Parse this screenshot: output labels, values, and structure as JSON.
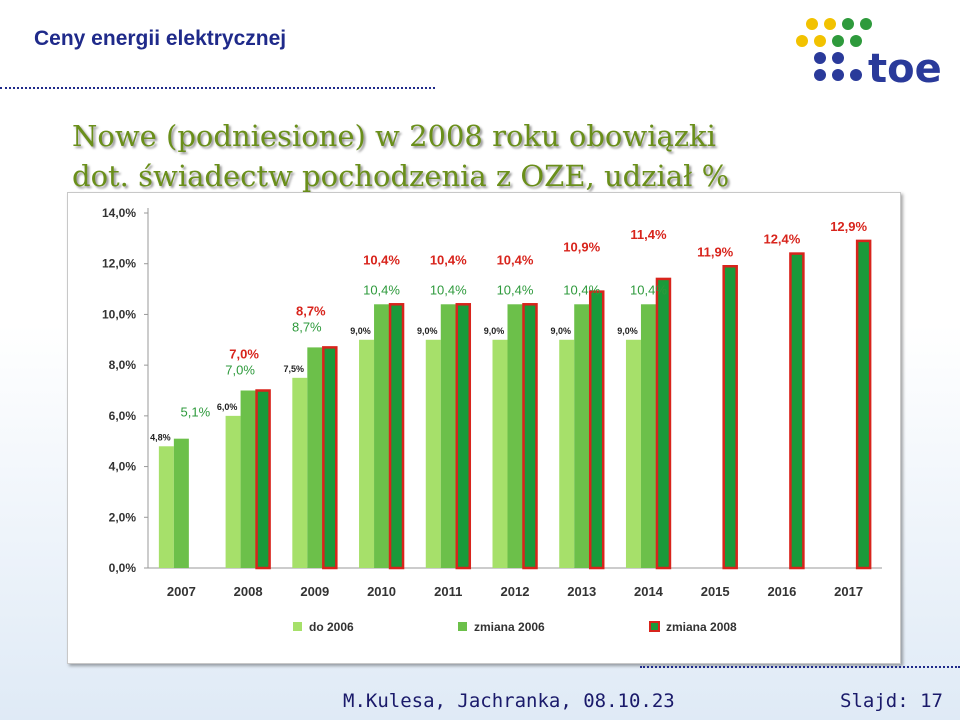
{
  "header": {
    "title": "Ceny energii elektrycznej",
    "logo_text": "toe"
  },
  "headline": {
    "line1": "Nowe (podniesione) w 2008 roku obowiązki",
    "line2": "dot. świadectw pochodzenia z OZE, udział %"
  },
  "footer": {
    "author": "M.Kulesa, Jachranka, 08.10.23",
    "slide": "Slajd: 17"
  },
  "colors": {
    "title": "#1f2a8a",
    "headline": "#6a8f1a",
    "light_green": "#a6e06a",
    "mid_green": "#6cc04a",
    "dark_green": "#1a9a3a",
    "red_border": "#d8241c",
    "label_green": "#2e9a3c",
    "label_red": "#d8241c"
  },
  "chart_data": {
    "type": "bar",
    "categories": [
      "2007",
      "2008",
      "2009",
      "2010",
      "2011",
      "2012",
      "2013",
      "2014",
      "2015",
      "2016",
      "2017"
    ],
    "ylim": [
      0,
      14
    ],
    "yticks": [
      "0,0%",
      "2,0%",
      "4,0%",
      "6,0%",
      "8,0%",
      "10,0%",
      "12,0%",
      "14,0%"
    ],
    "series": [
      {
        "name": "do 2006",
        "values": [
          4.8,
          6.0,
          7.5,
          9.0,
          9.0,
          9.0,
          9.0,
          9.0,
          null,
          null,
          null
        ],
        "labels": [
          "4,8%",
          "6,0%",
          "7,5%",
          "9,0%",
          "9,0%",
          "9,0%",
          "9,0%",
          "9,0%",
          "",
          "",
          ""
        ]
      },
      {
        "name": "zmiana 2006",
        "values": [
          5.1,
          7.0,
          8.7,
          10.4,
          10.4,
          10.4,
          10.4,
          10.4,
          null,
          null,
          null
        ],
        "labels": [
          "5,1%",
          "7,0%",
          "8,7%",
          "10,4%",
          "10,4%",
          "10,4%",
          "10,4%",
          "10,4%",
          "",
          "",
          ""
        ]
      },
      {
        "name": "zmiana 2008",
        "values": [
          null,
          7.0,
          8.7,
          10.4,
          10.4,
          10.4,
          10.9,
          11.4,
          11.9,
          12.4,
          12.9
        ],
        "labels": [
          "",
          "7,0%",
          "8,7%",
          "10,4%",
          "10,4%",
          "10,4%",
          "10,9%",
          "11,4%",
          "11,9%",
          "12,4%",
          "12,9%"
        ]
      }
    ],
    "legend_position": "bottom",
    "grid": false
  }
}
